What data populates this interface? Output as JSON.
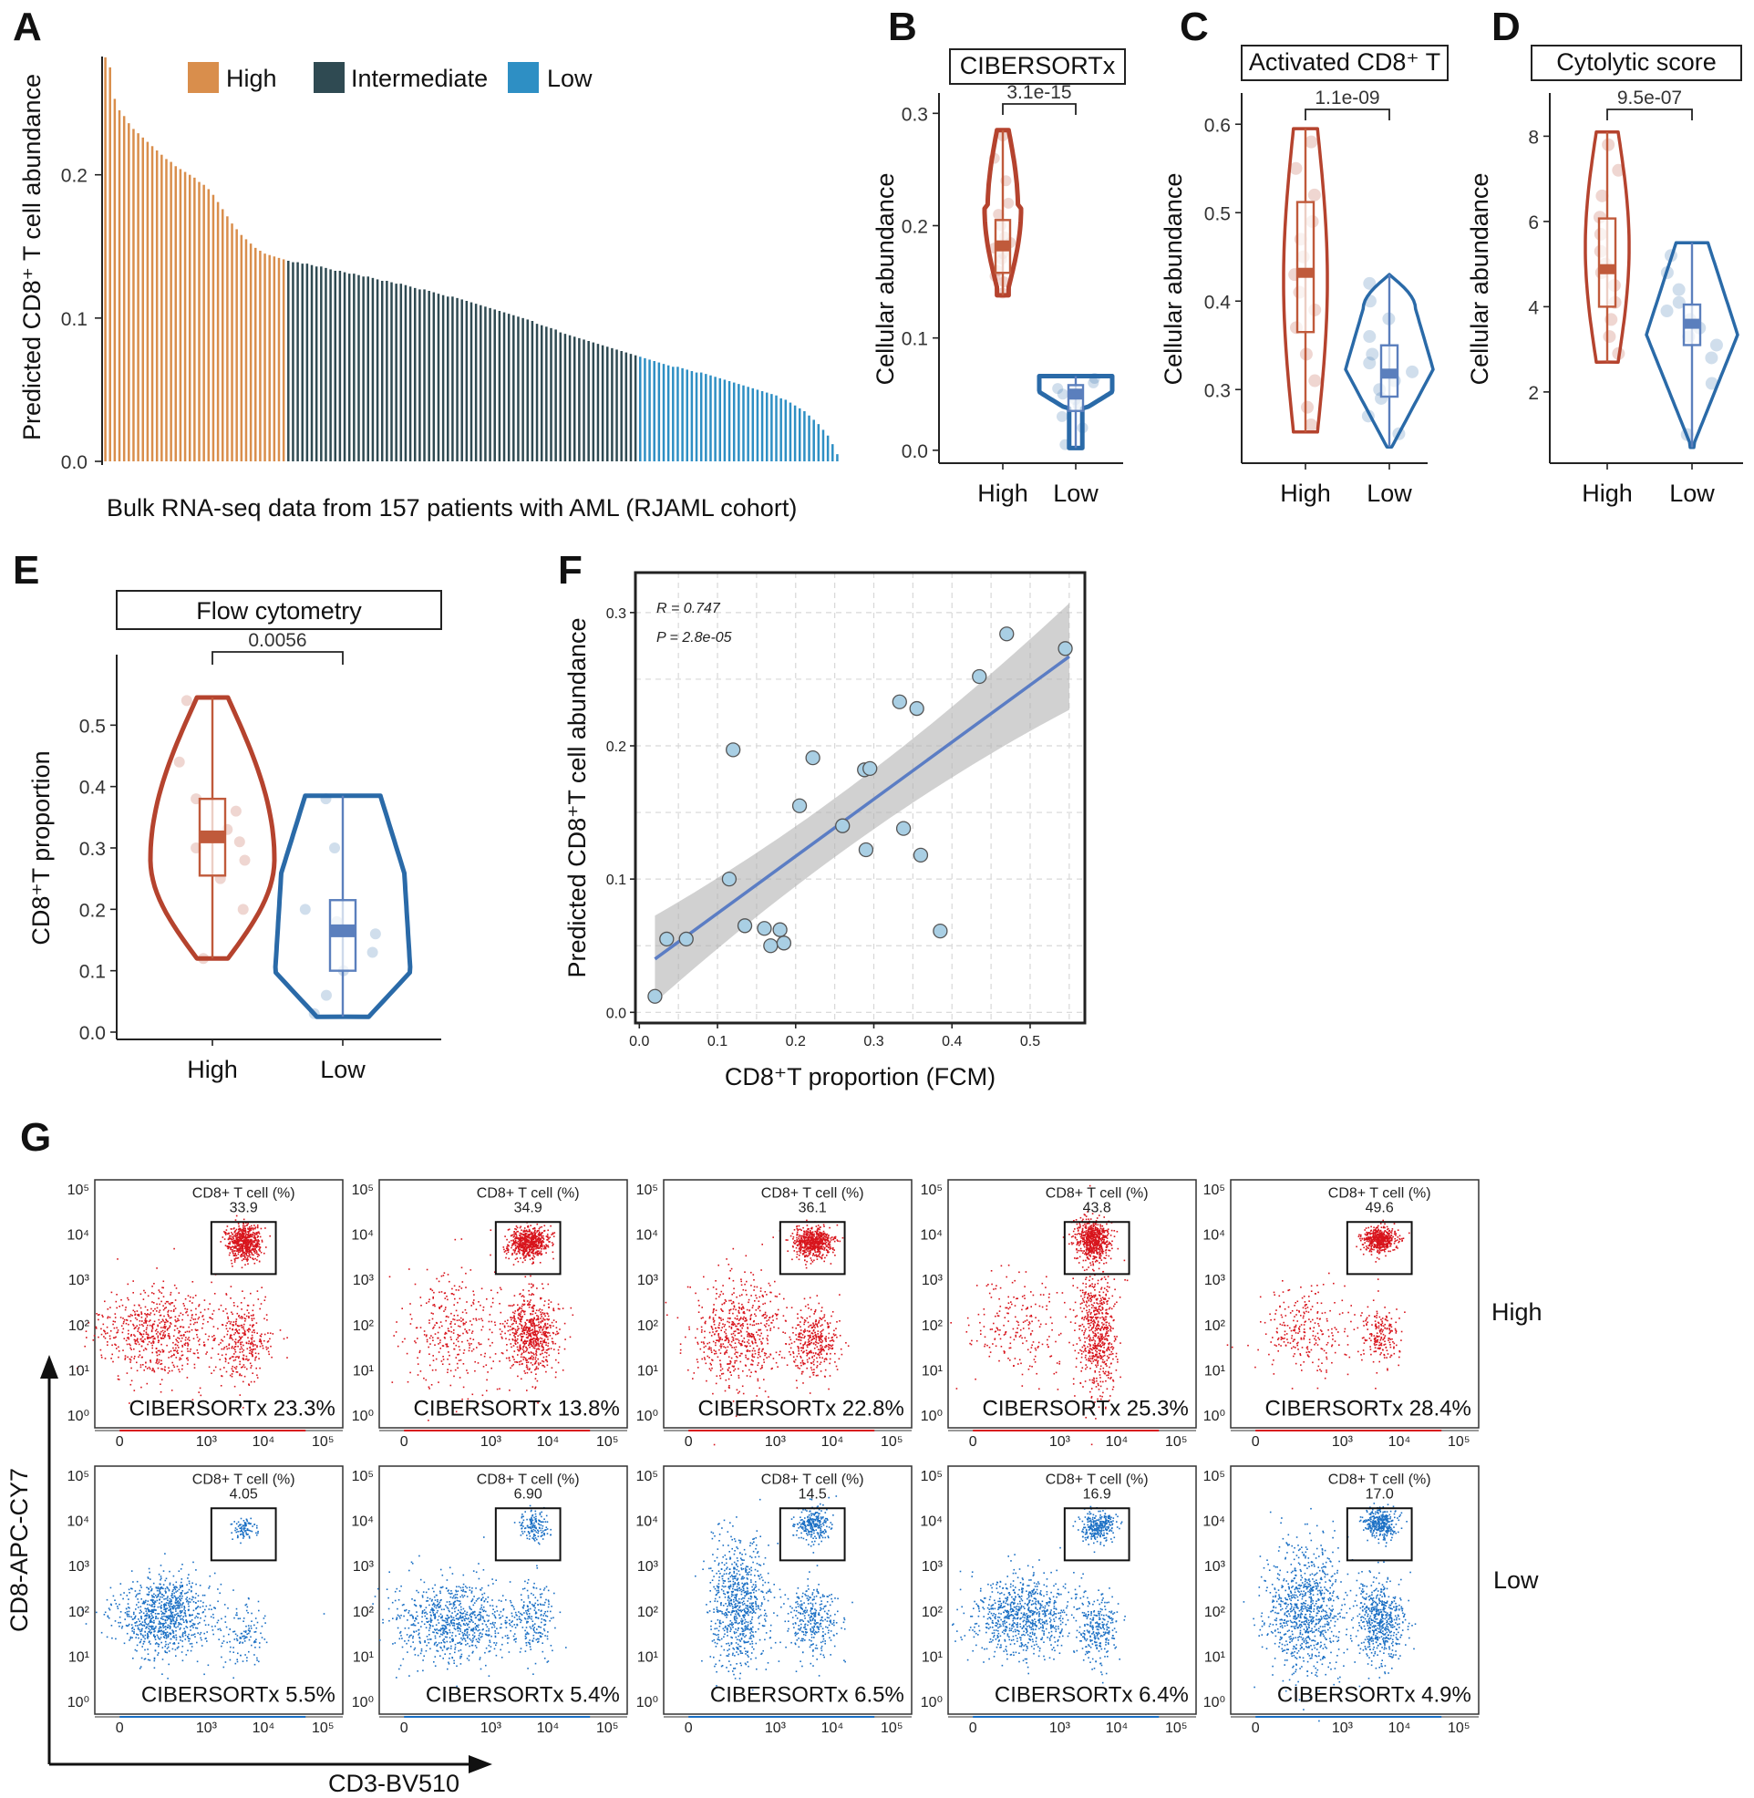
{
  "panel_labels": [
    "A",
    "B",
    "C",
    "D",
    "E",
    "F",
    "G"
  ],
  "colors": {
    "high": "#d98e4c",
    "intermediate": "#2f4a52",
    "low": "#2e8fc4",
    "violin_high": "#b5432e",
    "violin_low": "#2a6aa8",
    "box_low": "#5b7fbd",
    "point_fill": "#a9cfe4",
    "line": "#5b7dc4",
    "flow_high": "#d8141c",
    "flow_low": "#1a6fc4"
  },
  "chart_data": [
    {
      "id": "A",
      "type": "bar",
      "title": "",
      "legend": [
        "High",
        "Intermediate",
        "Low"
      ],
      "xlabel": "Bulk RNA-seq data from 157 patients with AML (RJAML cohort)",
      "ylabel": "Predicted CD8⁺ T cell abundance",
      "ylim": [
        0,
        0.28
      ],
      "yticks": [
        "0.0",
        "0.1",
        "0.2"
      ],
      "n_patients": 157,
      "group_counts": {
        "High": 39,
        "Intermediate": 75,
        "Low": 43
      },
      "values_description_sorted_desc": "see values",
      "values": [
        0.282,
        0.275,
        0.253,
        0.245,
        0.241,
        0.236,
        0.232,
        0.229,
        0.226,
        0.223,
        0.22,
        0.217,
        0.214,
        0.211,
        0.209,
        0.206,
        0.204,
        0.202,
        0.2,
        0.198,
        0.195,
        0.193,
        0.19,
        0.186,
        0.181,
        0.176,
        0.171,
        0.166,
        0.162,
        0.158,
        0.155,
        0.152,
        0.149,
        0.147,
        0.145,
        0.144,
        0.143,
        0.142,
        0.141,
        0.14,
        0.139,
        0.139,
        0.138,
        0.138,
        0.137,
        0.136,
        0.136,
        0.135,
        0.134,
        0.133,
        0.133,
        0.132,
        0.131,
        0.131,
        0.13,
        0.129,
        0.129,
        0.128,
        0.127,
        0.126,
        0.126,
        0.125,
        0.124,
        0.124,
        0.123,
        0.122,
        0.121,
        0.12,
        0.12,
        0.119,
        0.118,
        0.117,
        0.116,
        0.115,
        0.115,
        0.114,
        0.113,
        0.112,
        0.111,
        0.11,
        0.109,
        0.108,
        0.107,
        0.106,
        0.105,
        0.104,
        0.103,
        0.102,
        0.101,
        0.1,
        0.099,
        0.098,
        0.096,
        0.095,
        0.094,
        0.093,
        0.092,
        0.09,
        0.089,
        0.088,
        0.087,
        0.086,
        0.085,
        0.084,
        0.083,
        0.082,
        0.081,
        0.08,
        0.079,
        0.078,
        0.077,
        0.076,
        0.075,
        0.074,
        0.073,
        0.072,
        0.071,
        0.07,
        0.069,
        0.068,
        0.067,
        0.066,
        0.066,
        0.065,
        0.064,
        0.063,
        0.062,
        0.062,
        0.061,
        0.06,
        0.059,
        0.058,
        0.057,
        0.056,
        0.055,
        0.054,
        0.053,
        0.052,
        0.051,
        0.05,
        0.049,
        0.048,
        0.047,
        0.046,
        0.044,
        0.043,
        0.041,
        0.039,
        0.037,
        0.035,
        0.032,
        0.029,
        0.026,
        0.022,
        0.018,
        0.012,
        0.005
      ]
    },
    {
      "id": "B",
      "type": "violin",
      "title": "CIBERSORTx",
      "pvalue": "3.1e-15",
      "ylabel": "Cellular abundance",
      "categories": [
        "High",
        "Low"
      ],
      "ylim": [
        -0.005,
        0.31
      ],
      "yticks": [
        0.0,
        0.1,
        0.2,
        0.3
      ],
      "tick_labels": [
        "0.0",
        "0.1",
        "0.2",
        "0.3"
      ],
      "groups": [
        {
          "name": "High",
          "min": 0.138,
          "q1": 0.158,
          "median": 0.182,
          "q3": 0.205,
          "max": 0.285,
          "points": [
            0.14,
            0.15,
            0.155,
            0.16,
            0.17,
            0.175,
            0.18,
            0.185,
            0.19,
            0.2,
            0.21,
            0.22,
            0.24,
            0.26,
            0.28
          ]
        },
        {
          "name": "Low",
          "min": 0.002,
          "q1": 0.035,
          "median": 0.05,
          "q3": 0.058,
          "max": 0.066,
          "points": [
            0.005,
            0.02,
            0.03,
            0.04,
            0.045,
            0.05,
            0.055,
            0.06,
            0.064
          ]
        }
      ]
    },
    {
      "id": "C",
      "type": "violin",
      "title": "Activated CD8⁺ T",
      "pvalue": "1.1e-09",
      "ylabel": "Cellular abundance",
      "categories": [
        "High",
        "Low"
      ],
      "ylim": [
        0.225,
        0.625
      ],
      "yticks": [
        0.3,
        0.4,
        0.5,
        0.6
      ],
      "tick_labels": [
        "0.3",
        "0.4",
        "0.5",
        "0.6"
      ],
      "groups": [
        {
          "name": "High",
          "min": 0.252,
          "q1": 0.365,
          "median": 0.432,
          "q3": 0.512,
          "max": 0.595,
          "points": [
            0.26,
            0.28,
            0.31,
            0.34,
            0.37,
            0.39,
            0.41,
            0.43,
            0.45,
            0.47,
            0.49,
            0.52,
            0.55,
            0.58
          ]
        },
        {
          "name": "Low",
          "min": 0.235,
          "q1": 0.292,
          "median": 0.318,
          "q3": 0.35,
          "max": 0.43,
          "points": [
            0.25,
            0.27,
            0.29,
            0.3,
            0.31,
            0.32,
            0.33,
            0.34,
            0.36,
            0.38,
            0.4,
            0.42
          ]
        }
      ]
    },
    {
      "id": "D",
      "type": "violin",
      "title": "Cytolytic score",
      "pvalue": "9.5e-07",
      "ylabel": "Cellular abundance",
      "categories": [
        "High",
        "Low"
      ],
      "ylim": [
        0.5,
        8.8
      ],
      "yticks": [
        2,
        4,
        6,
        8
      ],
      "tick_labels": [
        "2",
        "4",
        "6",
        "8"
      ],
      "groups": [
        {
          "name": "High",
          "min": 2.7,
          "q1": 4.0,
          "median": 4.88,
          "q3": 6.07,
          "max": 8.1,
          "points": [
            2.9,
            3.3,
            3.7,
            4.1,
            4.5,
            4.8,
            5.0,
            5.3,
            5.7,
            6.1,
            6.6,
            7.2,
            7.8
          ]
        },
        {
          "name": "Low",
          "min": 0.7,
          "q1": 3.1,
          "median": 3.6,
          "q3": 4.05,
          "max": 5.5,
          "points": [
            1.0,
            2.2,
            2.8,
            3.1,
            3.3,
            3.5,
            3.7,
            3.9,
            4.1,
            4.4,
            4.8,
            5.2
          ]
        }
      ]
    },
    {
      "id": "E",
      "type": "violin",
      "title": "Flow cytometry",
      "pvalue": "0.0056",
      "ylabel": "CD8⁺T proportion",
      "categories": [
        "High",
        "Low"
      ],
      "ylim": [
        0.0,
        0.6
      ],
      "yticks": [
        0.0,
        0.1,
        0.2,
        0.3,
        0.4,
        0.5
      ],
      "tick_labels": [
        "0.0",
        "0.1",
        "0.2",
        "0.3",
        "0.4",
        "0.5"
      ],
      "groups": [
        {
          "name": "High",
          "min": 0.12,
          "q1": 0.255,
          "median": 0.318,
          "q3": 0.38,
          "max": 0.545,
          "points": [
            0.12,
            0.2,
            0.25,
            0.28,
            0.3,
            0.31,
            0.33,
            0.36,
            0.38,
            0.44,
            0.54
          ]
        },
        {
          "name": "Low",
          "min": 0.025,
          "q1": 0.1,
          "median": 0.165,
          "q3": 0.215,
          "max": 0.385,
          "points": [
            0.03,
            0.06,
            0.1,
            0.13,
            0.16,
            0.18,
            0.2,
            0.3,
            0.38
          ]
        }
      ]
    },
    {
      "id": "F",
      "type": "scatter",
      "xlabel": "CD8⁺T proportion (FCM)",
      "ylabel": "Predicted CD8⁺T cell abundance",
      "stat_r": "R = 0.747",
      "stat_p": "P = 2.8e-05",
      "xlim": [
        -0.005,
        0.57
      ],
      "ylim": [
        -0.008,
        0.33
      ],
      "xticks": [
        0.0,
        0.1,
        0.2,
        0.3,
        0.4,
        0.5
      ],
      "xtick_labels": [
        "0.0",
        "0.1",
        "0.2",
        "0.3",
        "0.4",
        "0.5"
      ],
      "yticks": [
        0.0,
        0.1,
        0.2,
        0.3
      ],
      "ytick_labels": [
        "0.0",
        "0.1",
        "0.2",
        "0.3"
      ],
      "fit": {
        "x0": 0.02,
        "y0": 0.04,
        "x1": 0.55,
        "y1": 0.267
      },
      "points": [
        [
          0.02,
          0.012
        ],
        [
          0.035,
          0.055
        ],
        [
          0.06,
          0.055
        ],
        [
          0.115,
          0.1
        ],
        [
          0.12,
          0.197
        ],
        [
          0.135,
          0.065
        ],
        [
          0.16,
          0.063
        ],
        [
          0.168,
          0.05
        ],
        [
          0.18,
          0.062
        ],
        [
          0.185,
          0.052
        ],
        [
          0.205,
          0.155
        ],
        [
          0.222,
          0.191
        ],
        [
          0.26,
          0.14
        ],
        [
          0.288,
          0.182
        ],
        [
          0.29,
          0.122
        ],
        [
          0.295,
          0.183
        ],
        [
          0.333,
          0.233
        ],
        [
          0.338,
          0.138
        ],
        [
          0.355,
          0.228
        ],
        [
          0.36,
          0.118
        ],
        [
          0.385,
          0.061
        ],
        [
          0.435,
          0.252
        ],
        [
          0.47,
          0.284
        ],
        [
          0.545,
          0.273
        ]
      ]
    }
  ],
  "flow": {
    "x_axis_label": "CD3-BV510",
    "y_axis_label": "CD8-APC-CY7",
    "gate_title": "CD8+ T cell (%)",
    "row_labels": [
      "High",
      "Low"
    ],
    "x_tick_labels": [
      "0",
      "10³",
      "10⁴",
      "10⁵"
    ],
    "y_tick_labels": [
      "10⁰",
      "10¹",
      "10²",
      "10³",
      "10⁴",
      "10⁵"
    ],
    "high": [
      {
        "gate": "33.9",
        "cibersortx": "CIBERSORTx 23.3%"
      },
      {
        "gate": "34.9",
        "cibersortx": "CIBERSORTx 13.8%"
      },
      {
        "gate": "36.1",
        "cibersortx": "CIBERSORTx 22.8%"
      },
      {
        "gate": "43.8",
        "cibersortx": "CIBERSORTx 25.3%"
      },
      {
        "gate": "49.6",
        "cibersortx": "CIBERSORTx 28.4%"
      }
    ],
    "low": [
      {
        "gate": "4.05",
        "cibersortx": "CIBERSORTx 5.5%"
      },
      {
        "gate": "6.90",
        "cibersortx": "CIBERSORTx 5.4%"
      },
      {
        "gate": "14.5",
        "cibersortx": "CIBERSORTx 6.5%"
      },
      {
        "gate": "16.9",
        "cibersortx": "CIBERSORTx 6.4%"
      },
      {
        "gate": "17.0",
        "cibersortx": "CIBERSORTx 4.9%"
      }
    ]
  }
}
